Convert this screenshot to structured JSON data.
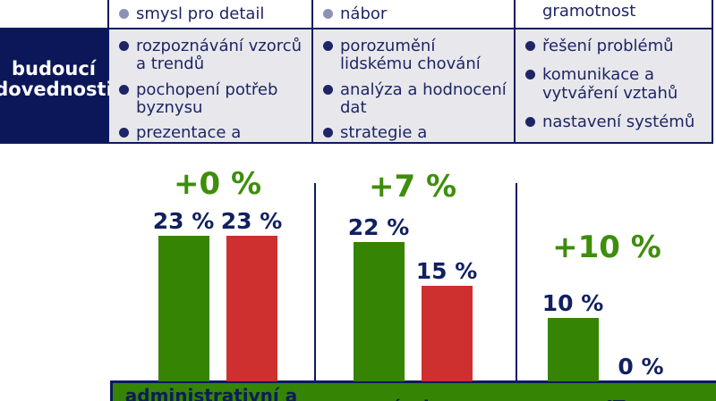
{
  "colors": {
    "navy": "#0c1a5e",
    "table_header_bg": "#0b1758",
    "cell_gray": "#e8e8ec",
    "corner_gray_blue": "#7e86a6",
    "bullet_muted": "#8b92b4",
    "text_navy": "#1e2566",
    "green_bar": "#358404",
    "green_text": "#3e8e0b",
    "red_bar": "#ce2f2f",
    "value_navy": "#11205f"
  },
  "table": {
    "row_header": "budoucí dovednosti",
    "top_row_items": [
      "smysl pro detail",
      "nábor",
      "gramotnost"
    ],
    "columns": [
      {
        "skills": [
          "rozpoznávání vzorců a trendů",
          "pochopení potřeb byznysu",
          "prezentace a zákaznické služby"
        ]
      },
      {
        "skills": [
          "porozumění lidskému chování",
          "analýza a hodnocení dat",
          "strategie a plánování rozvoje lidských zdrojů"
        ]
      },
      {
        "skills": [
          "řešení problémů",
          "komunikace a vytváření vztahů",
          "nastavení systémů"
        ]
      }
    ]
  },
  "chart_data": {
    "type": "bar",
    "categories": [
      "administrativní a",
      "výroba",
      "IT"
    ],
    "series": [
      {
        "name": "green-series",
        "color": "#358404",
        "values": [
          23,
          22,
          10
        ]
      },
      {
        "name": "red-series",
        "color": "#ce2f2f",
        "values": [
          23,
          15,
          0
        ]
      }
    ],
    "delta_labels": [
      "+0 %",
      "+7 %",
      "+10 %"
    ],
    "value_labels": [
      [
        "23 %",
        "23 %"
      ],
      [
        "22 %",
        "15 %"
      ],
      [
        "10 %",
        "0 %"
      ]
    ],
    "value_suffix": " %",
    "ylim": [
      0,
      25
    ],
    "grid": false,
    "legend": false
  }
}
